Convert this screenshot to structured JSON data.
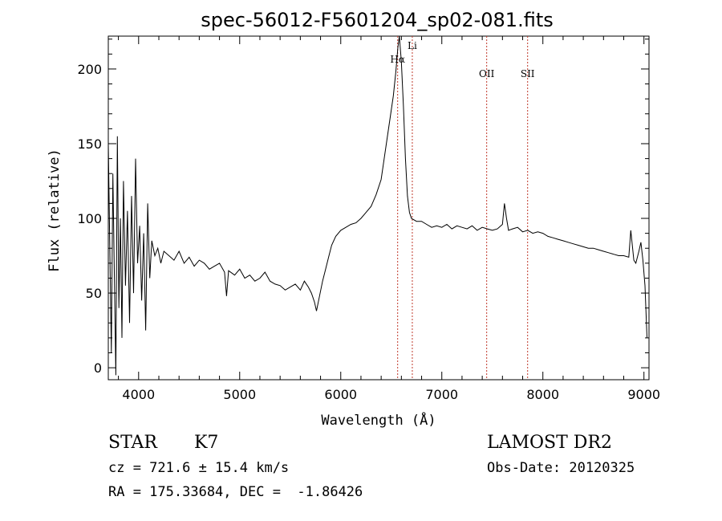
{
  "chart_data": {
    "type": "line",
    "title": "spec-56012-F5601204_sp02-081.fits",
    "xlabel": "Wavelength (Å)",
    "ylabel": "Flux (relative)",
    "xlim": [
      3700,
      9050
    ],
    "ylim": [
      -8,
      222
    ],
    "xticks": [
      4000,
      5000,
      6000,
      7000,
      8000,
      9000
    ],
    "yticks": [
      0,
      50,
      100,
      150,
      200
    ],
    "grid": false,
    "line_color": "#000000",
    "marker_color": "#c0392b",
    "lines": [
      {
        "label": "Hα",
        "x": 6563
      },
      {
        "label": "Li",
        "x": 6708
      },
      {
        "label": "OII",
        "x": 7444
      },
      {
        "label": "SII",
        "x": 7849
      }
    ],
    "series": [
      {
        "x": [
          3700,
          3715,
          3730,
          3745,
          3760,
          3775,
          3790,
          3805,
          3820,
          3835,
          3850,
          3870,
          3890,
          3910,
          3930,
          3950,
          3970,
          3990,
          4010,
          4030,
          4050,
          4070,
          4090,
          4110,
          4130,
          4160,
          4190,
          4220,
          4250,
          4300,
          4350,
          4400,
          4450,
          4500,
          4550,
          4600,
          4650,
          4700,
          4750,
          4800,
          4850,
          4870,
          4890,
          4950,
          5000,
          5050,
          5100,
          5150,
          5200,
          5250,
          5300,
          5350,
          5400,
          5450,
          5500,
          5550,
          5600,
          5640,
          5680,
          5710,
          5740,
          5760,
          5790,
          5820,
          5850,
          5880,
          5910,
          5950,
          6000,
          6050,
          6100,
          6150,
          6200,
          6250,
          6300,
          6350,
          6400,
          6430,
          6460,
          6490,
          6520,
          6545,
          6565,
          6580,
          6600,
          6620,
          6640,
          6660,
          6680,
          6700,
          6750,
          6800,
          6850,
          6900,
          6950,
          7000,
          7050,
          7100,
          7150,
          7200,
          7250,
          7300,
          7350,
          7400,
          7450,
          7500,
          7550,
          7600,
          7620,
          7640,
          7660,
          7700,
          7750,
          7800,
          7850,
          7900,
          7950,
          8000,
          8050,
          8100,
          8150,
          8200,
          8250,
          8300,
          8350,
          8400,
          8450,
          8500,
          8550,
          8600,
          8650,
          8700,
          8750,
          8800,
          8850,
          8870,
          8900,
          8920,
          8950,
          8970,
          8990,
          9010,
          9030
        ],
        "y": [
          150,
          80,
          10,
          130,
          60,
          -5,
          155,
          40,
          100,
          20,
          125,
          55,
          105,
          30,
          115,
          50,
          140,
          70,
          95,
          45,
          90,
          25,
          110,
          60,
          85,
          75,
          80,
          70,
          78,
          75,
          72,
          78,
          70,
          74,
          68,
          72,
          70,
          66,
          68,
          70,
          64,
          48,
          65,
          62,
          66,
          60,
          62,
          58,
          60,
          64,
          58,
          56,
          55,
          52,
          54,
          56,
          52,
          58,
          54,
          50,
          44,
          38,
          48,
          58,
          66,
          74,
          82,
          88,
          92,
          94,
          96,
          97,
          100,
          104,
          108,
          116,
          126,
          140,
          154,
          168,
          182,
          198,
          214,
          222,
          205,
          175,
          140,
          115,
          104,
          100,
          98,
          98,
          96,
          94,
          95,
          94,
          96,
          93,
          95,
          94,
          93,
          95,
          92,
          94,
          93,
          92,
          93,
          96,
          110,
          100,
          92,
          93,
          94,
          91,
          92,
          90,
          91,
          90,
          88,
          87,
          86,
          85,
          84,
          83,
          82,
          81,
          80,
          80,
          79,
          78,
          77,
          76,
          75,
          75,
          74,
          92,
          72,
          70,
          78,
          84,
          72,
          55,
          20
        ]
      }
    ]
  },
  "info": {
    "object_class": "STAR",
    "subclass": "K7",
    "survey": "LAMOST DR2",
    "redshift": "cz = 721.6 ± 15.4 km/s",
    "obs_date": "Obs-Date: 20120325",
    "coords": "RA = 175.33684, DEC =  -1.86426"
  }
}
